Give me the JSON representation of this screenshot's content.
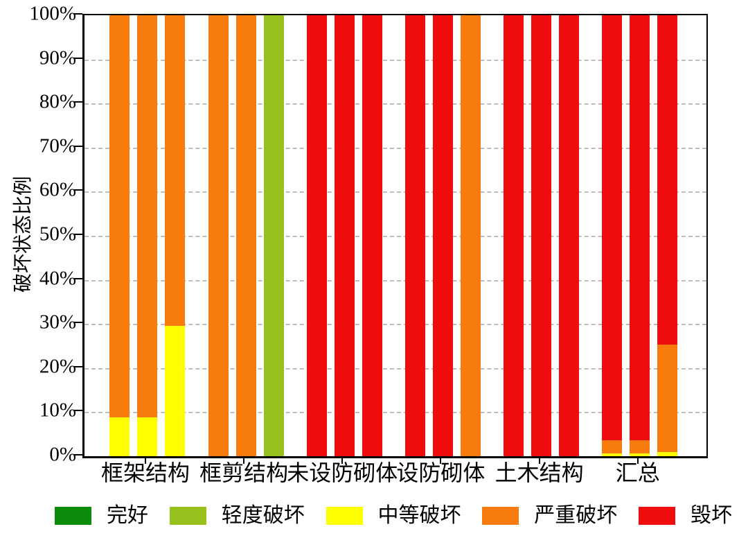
{
  "y_axis": {
    "label": "破坏状态比例",
    "ticks": [
      "0%",
      "10%",
      "20%",
      "30%",
      "40%",
      "50%",
      "60%",
      "70%",
      "80%",
      "90%",
      "100%"
    ]
  },
  "legend": [
    {
      "label": "完好",
      "color": "#0B8C0B"
    },
    {
      "label": "轻度破坏",
      "color": "#97C21E"
    },
    {
      "label": "中等破坏",
      "color": "#FFFF00"
    },
    {
      "label": "严重破坏",
      "color": "#F87B0D"
    },
    {
      "label": "毁坏",
      "color": "#F00D0D"
    }
  ],
  "chart_data": {
    "type": "bar",
    "stacked": true,
    "bars_per_category": 3,
    "title": "",
    "xlabel": "",
    "ylabel": "破坏状态比例",
    "ylim": [
      0,
      100
    ],
    "y_tick_step": 10,
    "grid": "horizontal dashed at 10%..90%",
    "legend_position": "bottom",
    "series_keys": [
      "完好",
      "轻度破坏",
      "中等破坏",
      "严重破坏",
      "毁坏"
    ],
    "series_keys_en": [
      "intact",
      "light-damage",
      "medium-damage",
      "severe-damage",
      "destroyed"
    ],
    "series_colors": [
      "#0B8C0B",
      "#97C21E",
      "#FFFF00",
      "#F87B0D",
      "#F00D0D"
    ],
    "categories": [
      "框架结构",
      "框剪结构",
      "未设防砌体",
      "设防砌体",
      "土木结构",
      "汇总"
    ],
    "groups": [
      {
        "category": "框架结构",
        "bars": [
          [
            0,
            0,
            8.8,
            91.2,
            0
          ],
          [
            0,
            0,
            8.8,
            91.2,
            0
          ],
          [
            0,
            0,
            29.5,
            70.5,
            0
          ]
        ]
      },
      {
        "category": "框剪结构",
        "bars": [
          [
            0,
            0,
            0,
            100,
            0
          ],
          [
            0,
            0,
            0,
            100,
            0
          ],
          [
            0,
            100,
            0,
            0,
            0
          ]
        ]
      },
      {
        "category": "未设防砌体",
        "bars": [
          [
            0,
            0,
            0,
            0,
            100
          ],
          [
            0,
            0,
            0,
            0,
            100
          ],
          [
            0,
            0,
            0,
            0,
            100
          ]
        ]
      },
      {
        "category": "设防砌体",
        "bars": [
          [
            0,
            0,
            0,
            0,
            100
          ],
          [
            0,
            0,
            0,
            0,
            100
          ],
          [
            0,
            0,
            0,
            100,
            0
          ]
        ]
      },
      {
        "category": "土木结构",
        "bars": [
          [
            0,
            0,
            0,
            0,
            100
          ],
          [
            0,
            0,
            0,
            0,
            100
          ],
          [
            0,
            0,
            0,
            0,
            100
          ]
        ]
      },
      {
        "category": "汇总",
        "bars": [
          [
            0,
            0,
            0.6,
            3.0,
            96.4
          ],
          [
            0,
            0,
            0.6,
            3.0,
            96.4
          ],
          [
            0,
            0,
            1.0,
            24.3,
            74.7
          ]
        ]
      }
    ]
  }
}
